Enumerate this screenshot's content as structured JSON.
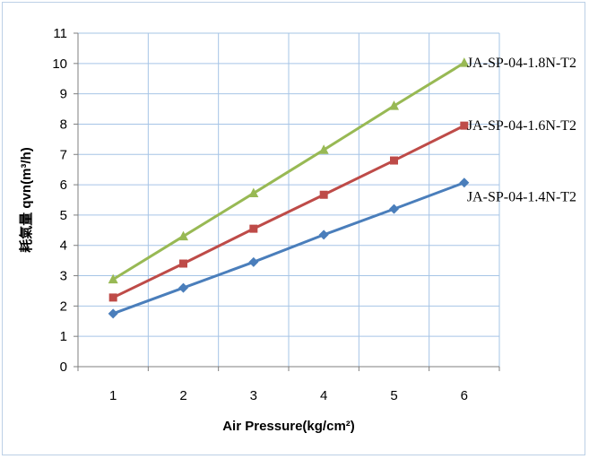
{
  "chart_data": {
    "type": "line",
    "title": "",
    "xlabel": "Air Pressure(kg/cm²)",
    "ylabel": "耗氣量 qvn(m³/h)",
    "x": [
      1,
      2,
      3,
      4,
      5,
      6
    ],
    "x_ticks": [
      "1",
      "2",
      "3",
      "4",
      "5",
      "6"
    ],
    "xlim": [
      0.5,
      6.5
    ],
    "ylim": [
      0,
      11
    ],
    "y_ticks": [
      "0",
      "1",
      "2",
      "3",
      "4",
      "5",
      "6",
      "7",
      "8",
      "9",
      "10",
      "11"
    ],
    "grid": true,
    "series": [
      {
        "name": "JA-SP-04-1.4N-T2",
        "marker": "diamond",
        "color": "#4a7ebb",
        "marker_color": "#4a7ebb",
        "values": [
          1.75,
          2.6,
          3.45,
          4.35,
          5.2,
          6.07
        ]
      },
      {
        "name": "JA-SP-04-1.6N-T2",
        "marker": "square",
        "color": "#be4b48",
        "marker_color": "#be4b48",
        "values": [
          2.28,
          3.4,
          4.55,
          5.67,
          6.8,
          7.95
        ]
      },
      {
        "name": "JA-SP-04-1.8N-T2",
        "marker": "triangle",
        "color": "#98b954",
        "marker_color": "#98b954",
        "values": [
          2.88,
          4.3,
          5.72,
          7.15,
          8.6,
          10.02
        ]
      }
    ]
  }
}
